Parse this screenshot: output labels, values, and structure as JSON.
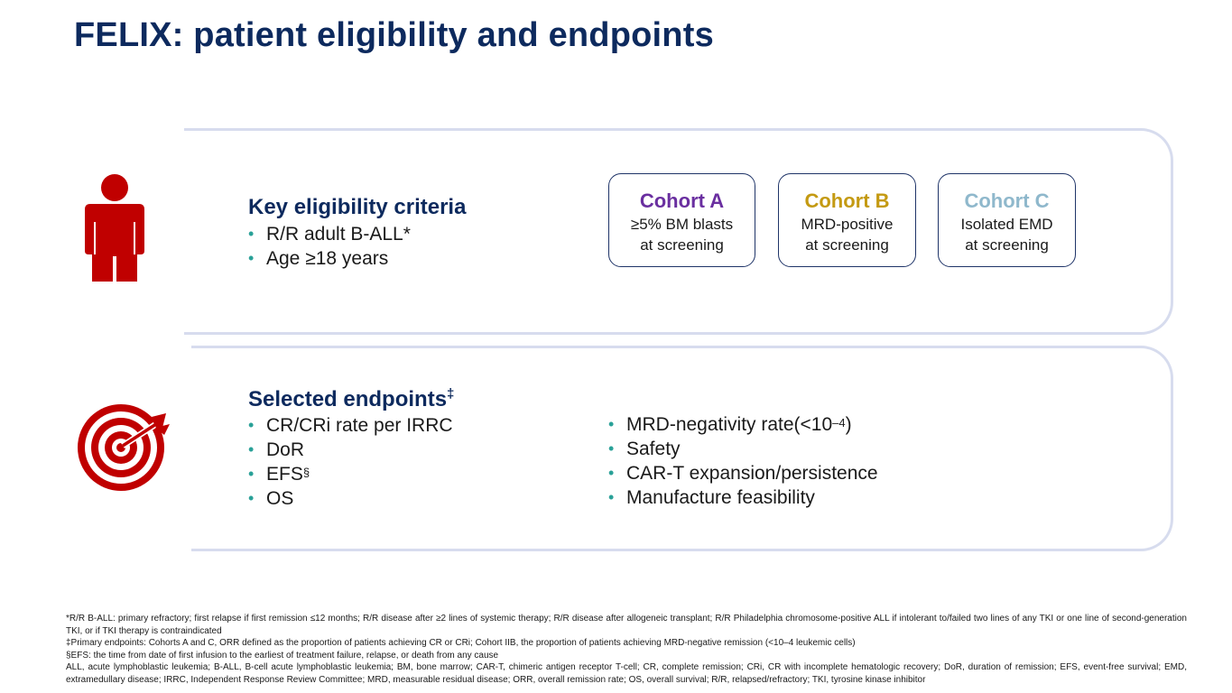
{
  "title": "FELIX: patient eligibility and endpoints",
  "eligibility": {
    "icon": "person-icon",
    "heading": "Key eligibility criteria",
    "items": [
      "R/R adult B-ALL*",
      "Age ≥18 years"
    ]
  },
  "cohorts": [
    {
      "name": "Cohort A",
      "line1": "≥5% BM blasts",
      "line2": "at screening",
      "color": "#6a2fa0"
    },
    {
      "name": "Cohort B",
      "line1": "MRD-positive",
      "line2": "at screening",
      "color": "#c49a12"
    },
    {
      "name": "Cohort C",
      "line1": "Isolated EMD",
      "line2": "at screening",
      "color": "#8fb8cc"
    }
  ],
  "endpoints": {
    "icon": "target-icon",
    "heading": "Selected endpoints",
    "heading_mark": "‡",
    "left_items": [
      "CR/CRi rate per IRRC",
      "DoR",
      "EFS",
      "OS"
    ],
    "efs_mark": "§",
    "right_items": [
      "MRD-negativity rate(<10",
      "Safety",
      "CAR-T expansion/persistence",
      "Manufacture feasibility"
    ],
    "mrd_exponent": "–4",
    "mrd_close": ")"
  },
  "footnotes": {
    "line1": "*R/R B-ALL: primary refractory; first relapse if first remission ≤12 months; R/R disease after ≥2 lines of systemic therapy; R/R disease after allogeneic transplant; R/R Philadelphia chromosome-positive ALL if intolerant to/failed two lines of any TKI or one line of second-generation TKI, or if TKI therapy is contraindicated",
    "line2": "‡Primary endpoints: Cohorts A and C, ORR defined as the proportion of patients achieving CR or CRi; Cohort IIB, the proportion of patients achieving MRD-negative remission (<10–4 leukemic cells)",
    "line3": "§EFS: the time from date of first infusion to the earliest of treatment failure, relapse, or death from any cause",
    "line4": "ALL, acute lymphoblastic leukemia; B-ALL, B-cell acute lymphoblastic leukemia; BM, bone marrow; CAR-T, chimeric antigen receptor T-cell; CR, complete remission; CRi, CR with incomplete hematologic recovery; DoR, duration of remission; EFS, event-free survival; EMD, extramedullary disease; IRRC, Independent Response Review Committee; MRD, measurable residual disease; ORR, overall remission rate; OS, overall survival; R/R, relapsed/refractory; TKI, tyrosine kinase inhibitor"
  },
  "colors": {
    "title": "#0d2a5e",
    "icon_red": "#c00000",
    "bullet": "#2aa198",
    "panel_border": "#d7dcee"
  }
}
